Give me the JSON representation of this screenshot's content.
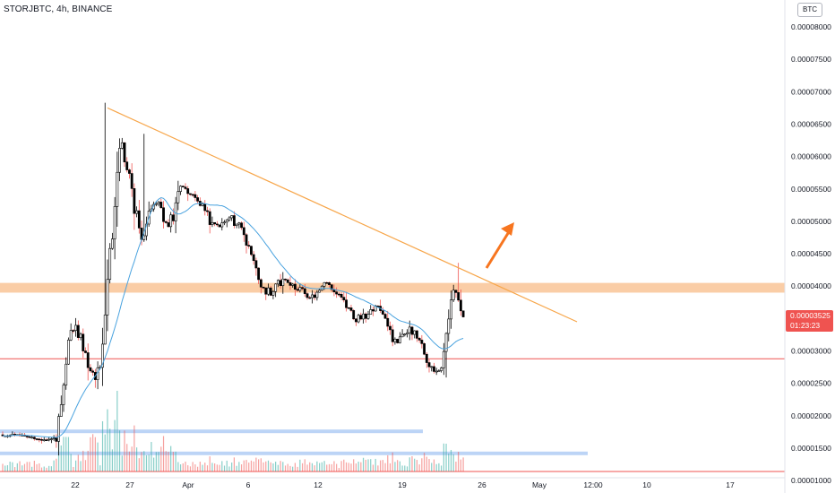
{
  "header": {
    "symbol_title": "STORJBTC, 4h, BINANCE",
    "currency_badge": "BTC"
  },
  "price_tag": {
    "price": "0.00003525",
    "countdown": "01:23:23",
    "color": "#ef5350"
  },
  "colors": {
    "up": "#000000",
    "down": "#ef5350",
    "ma_line": "#4aa3df",
    "trendline": "#f7a64a",
    "arrow": "#f7751f",
    "resistance_zone": "#f9c497",
    "support_line": "#ef5350",
    "volume_zone": "#bcd4f6",
    "volume_up": "#26a69a",
    "volume_down": "#ef5350"
  },
  "chart_data": {
    "type": "candlestick",
    "symbol": "STORJBTC",
    "interval": "4h",
    "exchange": "BINANCE",
    "ylim": [
      1.05e-05,
      8.5e-06
    ],
    "y_ticks": [
      "0.00008000",
      "0.00007500",
      "0.00007000",
      "0.00006500",
      "0.00006000",
      "0.00005500",
      "0.00005000",
      "0.00004500",
      "0.00004000",
      "0.00003500",
      "0.00003000",
      "0.00002500",
      "0.00002000",
      "0.00001500",
      "0.00001000"
    ],
    "x_ticks": [
      "22",
      "27",
      "Apr",
      "6",
      "12",
      "19",
      "26",
      "May",
      "12:00",
      "10",
      "17"
    ],
    "segments": [
      {
        "from": 0,
        "to": 22,
        "start": 1.69e-05,
        "end": 1.65e-05,
        "amp": 2.5e-07,
        "noise": 1.2e-07
      },
      {
        "from": 22,
        "to": 27,
        "start": 1.65e-05,
        "end": 3.1e-05,
        "amp": 0.0,
        "noise": 6e-07
      },
      {
        "from": 27,
        "to": 40,
        "start": 3.1e-05,
        "end": 2.85e-05,
        "amp": 3e-06,
        "noise": 1.1e-06
      },
      {
        "from": 40,
        "to": 48,
        "start": 2.85e-05,
        "end": 6.1e-05,
        "amp": 0.0,
        "noise": 1.8e-06
      },
      {
        "from": 48,
        "to": 58,
        "start": 6.1e-05,
        "end": 4.85e-05,
        "amp": 2e-06,
        "noise": 1.7e-06
      },
      {
        "from": 58,
        "to": 72,
        "start": 4.85e-05,
        "end": 5.45e-05,
        "amp": 3.5e-06,
        "noise": 1.3e-06
      },
      {
        "from": 72,
        "to": 92,
        "start": 5.45e-05,
        "end": 4.95e-05,
        "amp": 1.5e-06,
        "noise": 9e-07
      },
      {
        "from": 92,
        "to": 112,
        "start": 4.95e-05,
        "end": 4e-05,
        "amp": 2.5e-06,
        "noise": 9e-07
      },
      {
        "from": 112,
        "to": 130,
        "start": 4e-05,
        "end": 3.95e-05,
        "amp": 1e-06,
        "noise": 7e-07
      },
      {
        "from": 130,
        "to": 150,
        "start": 3.95e-05,
        "end": 3.55e-05,
        "amp": 1.5e-06,
        "noise": 7e-07
      },
      {
        "from": 150,
        "to": 165,
        "start": 3.55e-05,
        "end": 3.25e-05,
        "amp": 1.5e-06,
        "noise": 8e-07
      },
      {
        "from": 165,
        "to": 180,
        "start": 3.25e-05,
        "end": 2.8e-05,
        "amp": 1.5e-06,
        "noise": 8e-07
      },
      {
        "from": 180,
        "to": 185,
        "start": 2.8e-05,
        "end": 3.95e-05,
        "amp": 0.0,
        "noise": 8e-07
      },
      {
        "from": 185,
        "to": 190,
        "start": 3.95e-05,
        "end": 3.525e-05,
        "amp": 0.0,
        "noise": 8e-07
      }
    ],
    "ma_period": 20,
    "annotations": {
      "trendline": {
        "from_price": 6.75e-05,
        "to_price": 3.45e-05
      },
      "resistance_zone": [
        3.9e-05,
        4.05e-05
      ],
      "support_line": 2.88e-05,
      "volume_zones": [
        1.76e-05,
        1.42e-05
      ],
      "arrow": "up-right"
    }
  }
}
